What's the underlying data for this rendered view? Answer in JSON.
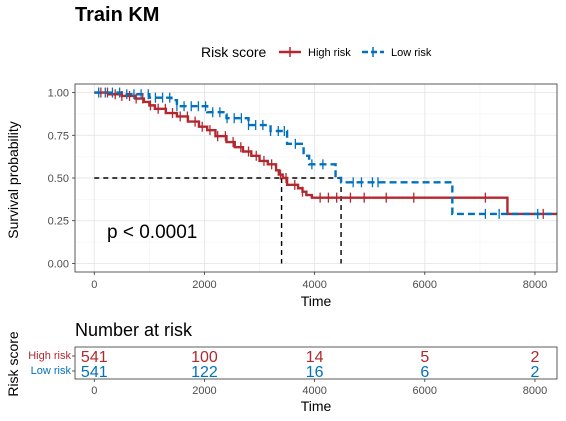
{
  "title": "Train KM",
  "legend": {
    "title": "Risk score",
    "items": [
      {
        "label": "High risk",
        "color": "#B2282E",
        "dash": "solid"
      },
      {
        "label": "Low risk",
        "color": "#0072BD",
        "dash": "dashed"
      }
    ]
  },
  "pvalue_text": "p < 0.0001",
  "risk_table": {
    "title": "Number at risk",
    "ylabel": "Risk score",
    "times": [
      0,
      2000,
      4000,
      6000,
      8000
    ],
    "rows": [
      {
        "label": "High risk",
        "color": "#B2282E",
        "values": [
          "541",
          "100",
          "14",
          "5",
          "2"
        ]
      },
      {
        "label": "Low risk",
        "color": "#0072BD",
        "values": [
          "541",
          "122",
          "16",
          "6",
          "2"
        ]
      }
    ],
    "xlabel": "Time",
    "xticks": [
      "0",
      "2000",
      "4000",
      "6000",
      "8000"
    ]
  },
  "chart_data": {
    "type": "line",
    "xlabel": "Time",
    "ylabel": "Survival probability",
    "xlim": [
      -350,
      8400
    ],
    "ylim": [
      -0.05,
      1.05
    ],
    "xticks": [
      0,
      2000,
      4000,
      6000,
      8000
    ],
    "yticks": [
      0.0,
      0.25,
      0.5,
      0.75,
      1.0
    ],
    "ytick_labels": [
      "0.00",
      "0.25",
      "0.50",
      "0.75",
      "1.00"
    ],
    "grid": true,
    "legend_position": "top",
    "median_line": {
      "y": 0.5,
      "median_times": [
        3400,
        4480
      ]
    },
    "series": [
      {
        "name": "High risk",
        "color": "#B2282E",
        "style": "solid",
        "steps": [
          [
            0,
            1.0
          ],
          [
            250,
            0.99
          ],
          [
            500,
            0.98
          ],
          [
            750,
            0.965
          ],
          [
            900,
            0.945
          ],
          [
            1000,
            0.925
          ],
          [
            1100,
            0.905
          ],
          [
            1300,
            0.88
          ],
          [
            1500,
            0.86
          ],
          [
            1700,
            0.83
          ],
          [
            1900,
            0.8
          ],
          [
            2050,
            0.78
          ],
          [
            2200,
            0.745
          ],
          [
            2400,
            0.71
          ],
          [
            2550,
            0.68
          ],
          [
            2700,
            0.655
          ],
          [
            2850,
            0.63
          ],
          [
            3000,
            0.6
          ],
          [
            3150,
            0.58
          ],
          [
            3300,
            0.545
          ],
          [
            3350,
            0.52
          ],
          [
            3420,
            0.5
          ],
          [
            3500,
            0.46
          ],
          [
            3700,
            0.44
          ],
          [
            3780,
            0.42
          ],
          [
            3850,
            0.4
          ],
          [
            3950,
            0.385
          ],
          [
            7500,
            0.29
          ],
          [
            8400,
            0.29
          ]
        ],
        "censor_times": [
          120,
          240,
          380,
          500,
          640,
          760,
          880,
          1020,
          1160,
          1290,
          1420,
          1560,
          1690,
          1830,
          1960,
          2100,
          2240,
          2380,
          2520,
          2660,
          2800,
          2940,
          3080,
          3220,
          3380,
          3480,
          3640,
          3780,
          4100,
          4250,
          4400,
          4650,
          4900,
          5300,
          5800,
          7100,
          8150
        ]
      },
      {
        "name": "Low risk",
        "color": "#0072BD",
        "style": "dashed",
        "steps": [
          [
            0,
            1.0
          ],
          [
            500,
            0.99
          ],
          [
            1000,
            0.97
          ],
          [
            1400,
            0.955
          ],
          [
            1500,
            0.92
          ],
          [
            2050,
            0.885
          ],
          [
            2400,
            0.85
          ],
          [
            2800,
            0.81
          ],
          [
            3200,
            0.775
          ],
          [
            3500,
            0.7
          ],
          [
            3800,
            0.63
          ],
          [
            3900,
            0.58
          ],
          [
            4380,
            0.5
          ],
          [
            4480,
            0.475
          ],
          [
            6500,
            0.29
          ],
          [
            8400,
            0.29
          ]
        ],
        "censor_times": [
          80,
          200,
          330,
          460,
          590,
          720,
          850,
          980,
          1110,
          1240,
          1370,
          1500,
          1630,
          1760,
          1890,
          2020,
          2150,
          2280,
          2410,
          2540,
          2670,
          2800,
          2930,
          3060,
          3200,
          3340,
          3450,
          3650,
          3950,
          4150,
          4700,
          4850,
          5050,
          5150,
          7100,
          7350,
          8050
        ]
      }
    ]
  }
}
